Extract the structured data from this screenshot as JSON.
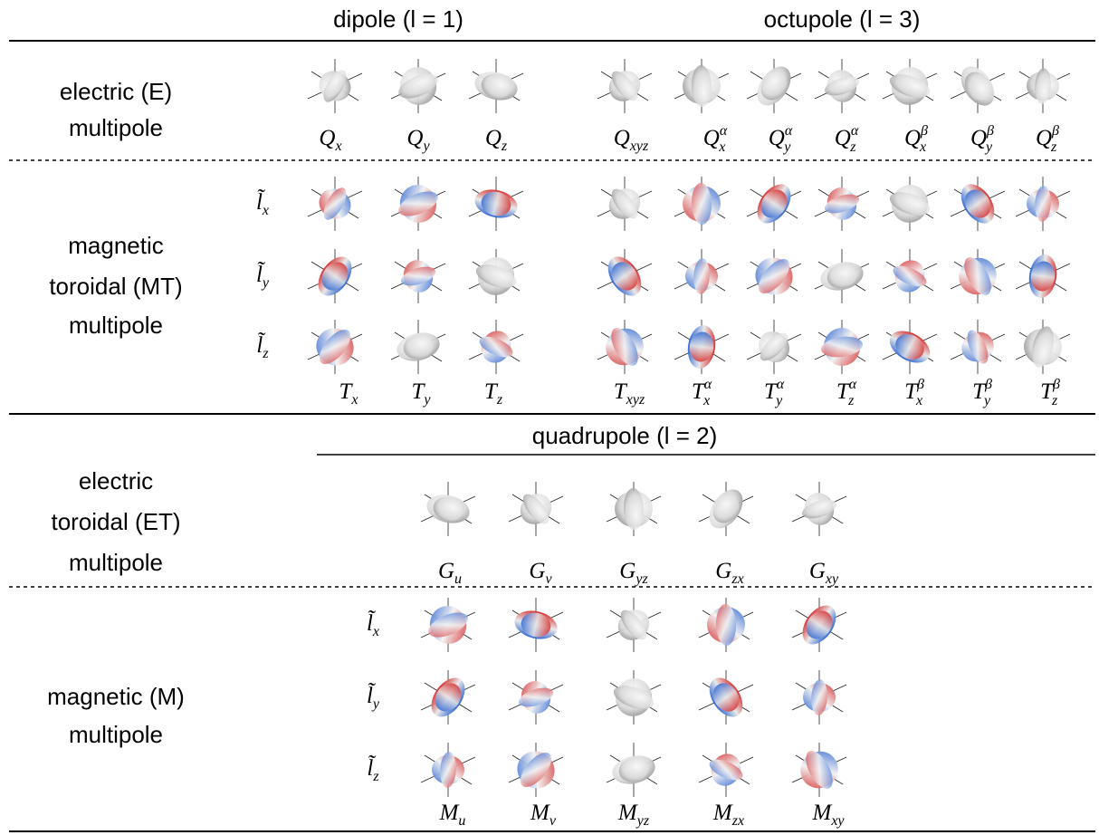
{
  "header": {
    "dipole": "dipole (l = 1)",
    "octupole": "octupole (l = 3)",
    "quadrupole": "quadrupole (l = 2)"
  },
  "rows": {
    "electric": {
      "label": [
        "electric (E)",
        "multipole"
      ],
      "symbols": [
        {
          "main": "Q",
          "sub": "x"
        },
        {
          "main": "Q",
          "sub": "y"
        },
        {
          "main": "Q",
          "sub": "z"
        },
        {
          "main": "Q",
          "sub": "xyz"
        },
        {
          "main": "Q",
          "sub": "x",
          "sup": "α"
        },
        {
          "main": "Q",
          "sub": "y",
          "sup": "α"
        },
        {
          "main": "Q",
          "sub": "z",
          "sup": "α"
        },
        {
          "main": "Q",
          "sub": "x",
          "sup": "β"
        },
        {
          "main": "Q",
          "sub": "y",
          "sup": "β"
        },
        {
          "main": "Q",
          "sub": "z",
          "sup": "β"
        }
      ]
    },
    "magnetic_toroidal": {
      "label": [
        "magnetic",
        "toroidal (MT)",
        "multipole"
      ],
      "axes": [
        {
          "main": "l̃",
          "sub": "x"
        },
        {
          "main": "l̃",
          "sub": "y"
        },
        {
          "main": "l̃",
          "sub": "z"
        }
      ],
      "symbols": [
        {
          "main": "T",
          "sub": "x"
        },
        {
          "main": "T",
          "sub": "y"
        },
        {
          "main": "T",
          "sub": "z"
        },
        {
          "main": "T",
          "sub": "xyz"
        },
        {
          "main": "T",
          "sub": "x",
          "sup": "α"
        },
        {
          "main": "T",
          "sub": "y",
          "sup": "α"
        },
        {
          "main": "T",
          "sub": "z",
          "sup": "α"
        },
        {
          "main": "T",
          "sub": "x",
          "sup": "β"
        },
        {
          "main": "T",
          "sub": "y",
          "sup": "β"
        },
        {
          "main": "T",
          "sub": "z",
          "sup": "β"
        }
      ]
    },
    "electric_toroidal": {
      "label": [
        "electric",
        "toroidal (ET)",
        "multipole"
      ],
      "symbols": [
        {
          "main": "G",
          "sub": "u"
        },
        {
          "main": "G",
          "sub": "v"
        },
        {
          "main": "G",
          "sub": "yz"
        },
        {
          "main": "G",
          "sub": "zx"
        },
        {
          "main": "G",
          "sub": "xy"
        }
      ]
    },
    "magnetic": {
      "label": [
        "magnetic (M)",
        "multipole"
      ],
      "axes": [
        {
          "main": "l̃",
          "sub": "x"
        },
        {
          "main": "l̃",
          "sub": "y"
        },
        {
          "main": "l̃",
          "sub": "z"
        }
      ],
      "symbols": [
        {
          "main": "M",
          "sub": "u"
        },
        {
          "main": "M",
          "sub": "v"
        },
        {
          "main": "M",
          "sub": "yz"
        },
        {
          "main": "M",
          "sub": "zx"
        },
        {
          "main": "M",
          "sub": "xy"
        }
      ]
    }
  }
}
